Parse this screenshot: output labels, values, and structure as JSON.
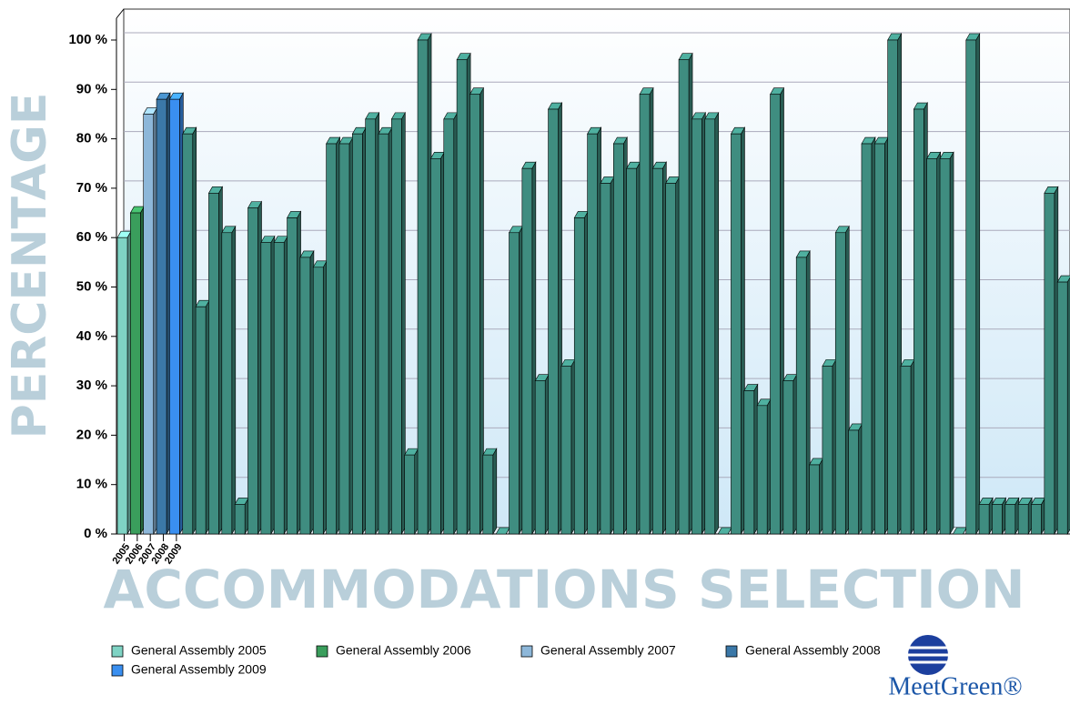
{
  "chart_data": {
    "type": "bar",
    "x_label": "ACCOMMODATIONS SELECTION",
    "y_label": "PERCENTAGE",
    "categories": [
      "2005",
      "2006",
      "2007",
      "2008",
      "2009",
      null,
      null,
      null,
      null,
      null,
      null,
      null,
      null,
      null,
      null,
      null,
      null,
      null,
      null,
      null,
      null,
      null,
      null,
      null,
      null,
      null,
      null,
      null,
      null,
      null,
      null,
      null,
      null,
      null,
      null,
      null,
      null,
      null,
      null,
      null,
      null,
      null,
      null,
      null,
      null,
      null,
      null,
      null,
      null,
      null,
      null,
      null,
      null,
      null,
      null,
      null,
      null,
      null,
      null,
      null,
      null,
      null,
      null,
      null,
      null,
      null,
      null,
      null,
      null,
      null,
      null,
      null,
      null
    ],
    "series": [
      {
        "name": "General Assembly 2005",
        "color": "#7fd3c4",
        "values": [
          60,
          null,
          null,
          null,
          null,
          null,
          null,
          null,
          null,
          null,
          null,
          null,
          null,
          null,
          null,
          null,
          null,
          null,
          null,
          null,
          null,
          null,
          null,
          null,
          null,
          null,
          null,
          null,
          null,
          null,
          null,
          null,
          null,
          null,
          null,
          null,
          null,
          null,
          null,
          null,
          null,
          null,
          null,
          null,
          null,
          null,
          null,
          null,
          null,
          null,
          null,
          null,
          null,
          null,
          null,
          null,
          null,
          null,
          null,
          null,
          null,
          null,
          null,
          null,
          null,
          null,
          null,
          null,
          null,
          null,
          null,
          null,
          null
        ]
      },
      {
        "name": "General Assembly 2006",
        "color": "#3a9e5c",
        "values": [
          null,
          65,
          null,
          null,
          null,
          null,
          null,
          null,
          null,
          null,
          null,
          null,
          null,
          null,
          null,
          null,
          null,
          null,
          null,
          null,
          null,
          null,
          null,
          null,
          null,
          null,
          null,
          null,
          null,
          null,
          null,
          null,
          null,
          null,
          null,
          null,
          null,
          null,
          null,
          null,
          null,
          null,
          null,
          null,
          null,
          null,
          null,
          null,
          null,
          null,
          null,
          null,
          null,
          null,
          null,
          null,
          null,
          null,
          null,
          null,
          null,
          null,
          null,
          null,
          null,
          null,
          null,
          null,
          null,
          null,
          null,
          null,
          null
        ]
      },
      {
        "name": "General Assembly 2007",
        "color": "#8db7d9",
        "values": [
          null,
          null,
          85,
          null,
          null,
          null,
          null,
          null,
          null,
          null,
          null,
          null,
          null,
          null,
          null,
          null,
          null,
          null,
          null,
          null,
          null,
          null,
          null,
          null,
          null,
          null,
          null,
          null,
          null,
          null,
          null,
          null,
          null,
          null,
          null,
          null,
          null,
          null,
          null,
          null,
          null,
          null,
          null,
          null,
          null,
          null,
          null,
          null,
          null,
          null,
          null,
          null,
          null,
          null,
          null,
          null,
          null,
          null,
          null,
          null,
          null,
          null,
          null,
          null,
          null,
          null,
          null,
          null,
          null,
          null,
          null,
          null,
          null
        ]
      },
      {
        "name": "General Assembly 2008",
        "color": "#3b78a8",
        "values": [
          null,
          null,
          null,
          88,
          null,
          null,
          null,
          null,
          null,
          null,
          null,
          null,
          null,
          null,
          null,
          null,
          null,
          null,
          null,
          null,
          null,
          null,
          null,
          null,
          null,
          null,
          null,
          null,
          null,
          null,
          null,
          null,
          null,
          null,
          null,
          null,
          null,
          null,
          null,
          null,
          null,
          null,
          null,
          null,
          null,
          null,
          null,
          null,
          null,
          null,
          null,
          null,
          null,
          null,
          null,
          null,
          null,
          null,
          null,
          null,
          null,
          null,
          null,
          null,
          null,
          null,
          null,
          null,
          null,
          null,
          null,
          null,
          null
        ]
      },
      {
        "name": "General Assembly 2009",
        "color": "#3a8ff0",
        "values": [
          null,
          null,
          null,
          null,
          88,
          null,
          null,
          null,
          null,
          null,
          null,
          null,
          null,
          null,
          null,
          null,
          null,
          null,
          null,
          null,
          null,
          null,
          null,
          null,
          null,
          null,
          null,
          null,
          null,
          null,
          null,
          null,
          null,
          null,
          null,
          null,
          null,
          null,
          null,
          null,
          null,
          null,
          null,
          null,
          null,
          null,
          null,
          null,
          null,
          null,
          null,
          null,
          null,
          null,
          null,
          null,
          null,
          null,
          null,
          null,
          null,
          null,
          null,
          null,
          null,
          null,
          null,
          null,
          null,
          null,
          null,
          null,
          null
        ]
      },
      {
        "color": "#3f8d80",
        "values": [
          null,
          null,
          null,
          null,
          null,
          81,
          46,
          69,
          61,
          6,
          66,
          59,
          59,
          64,
          56,
          54,
          79,
          79,
          81,
          84,
          81,
          84,
          16,
          100,
          76,
          84,
          96,
          89,
          16,
          0,
          61,
          74,
          31,
          86,
          34,
          64,
          81,
          71,
          79,
          74,
          89,
          74,
          71,
          96,
          84,
          84,
          0,
          81,
          29,
          26,
          89,
          31,
          56,
          14,
          34,
          61,
          21,
          79,
          79,
          100,
          34,
          86,
          76,
          76,
          0,
          100,
          6,
          6,
          6,
          6,
          6,
          69,
          51
        ]
      }
    ],
    "ylim": [
      0,
      100
    ],
    "yticks": [
      {
        "value": 0,
        "label": "0 %"
      },
      {
        "value": 10,
        "label": "10 %"
      },
      {
        "value": 20,
        "label": "20 %"
      },
      {
        "value": 30,
        "label": "30 %"
      },
      {
        "value": 40,
        "label": "40 %"
      },
      {
        "value": 50,
        "label": "50 %"
      },
      {
        "value": 60,
        "label": "60 %"
      },
      {
        "value": 70,
        "label": "70 %"
      },
      {
        "value": 80,
        "label": "80 %"
      },
      {
        "value": 90,
        "label": "90 %"
      },
      {
        "value": 100,
        "label": "100 %"
      }
    ],
    "grid": true,
    "legend": "bottom"
  },
  "logo": "MeetGreen®"
}
